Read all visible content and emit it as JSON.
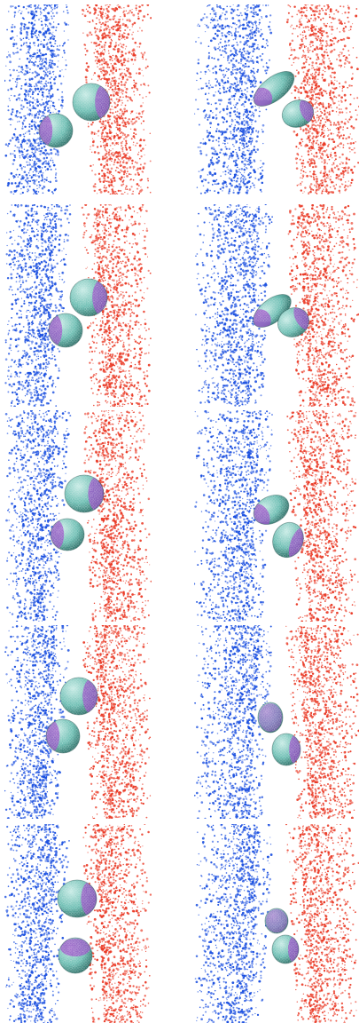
{
  "figure": {
    "rows": 5,
    "columns": 2
  },
  "colors": {
    "left_phase": "#1a4fe0",
    "right_phase": "#ea3a26",
    "particle_surface": "#6fbfb4",
    "particle_contact_patch": "#9b4fc7",
    "background": "#ffffff"
  },
  "panels": [
    {
      "id": "r1-left-column",
      "particles": [
        {
          "shape": "sphere"
        },
        {
          "shape": "sphere"
        }
      ]
    },
    {
      "id": "r1-right-column",
      "particles": [
        {
          "shape": "ellipsoid"
        },
        {
          "shape": "ellipsoid"
        }
      ]
    },
    {
      "id": "r2-left-column",
      "particles": [
        {
          "shape": "sphere"
        },
        {
          "shape": "sphere"
        }
      ]
    },
    {
      "id": "r2-right-column",
      "particles": [
        {
          "shape": "ellipsoid"
        },
        {
          "shape": "ellipsoid"
        }
      ]
    },
    {
      "id": "r3-left-column",
      "particles": [
        {
          "shape": "sphere"
        },
        {
          "shape": "sphere"
        }
      ]
    },
    {
      "id": "r3-right-column",
      "particles": [
        {
          "shape": "ellipsoid"
        },
        {
          "shape": "ellipsoid"
        }
      ]
    },
    {
      "id": "r4-left-column",
      "particles": [
        {
          "shape": "sphere"
        },
        {
          "shape": "sphere"
        }
      ]
    },
    {
      "id": "r4-right-column",
      "particles": [
        {
          "shape": "ellipsoid"
        },
        {
          "shape": "ellipsoid"
        }
      ]
    },
    {
      "id": "r5-left-column",
      "particles": [
        {
          "shape": "sphere"
        },
        {
          "shape": "sphere"
        }
      ]
    },
    {
      "id": "r5-right-column",
      "particles": [
        {
          "shape": "ellipsoid"
        },
        {
          "shape": "ellipsoid"
        }
      ]
    }
  ]
}
